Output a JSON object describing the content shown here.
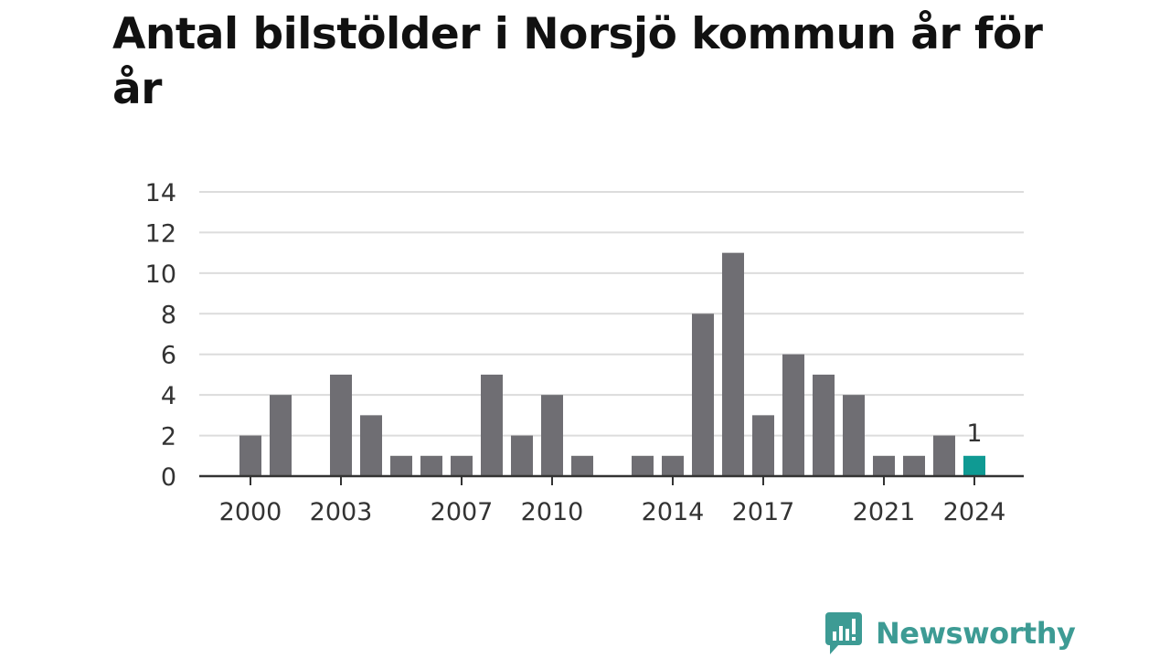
{
  "chart_data": {
    "type": "bar",
    "title": "Antal bilstölder i Norsjö kommun år för år",
    "x": [
      2000,
      2001,
      2002,
      2003,
      2004,
      2005,
      2006,
      2007,
      2008,
      2009,
      2010,
      2011,
      2012,
      2013,
      2014,
      2015,
      2016,
      2017,
      2018,
      2019,
      2020,
      2021,
      2022,
      2023,
      2024
    ],
    "values": [
      2,
      4,
      0,
      5,
      3,
      1,
      1,
      1,
      5,
      2,
      4,
      1,
      0,
      1,
      1,
      8,
      11,
      3,
      6,
      5,
      4,
      1,
      1,
      2,
      1
    ],
    "x_ticks": [
      2000,
      2003,
      2007,
      2010,
      2014,
      2017,
      2021,
      2024
    ],
    "y_ticks": [
      0,
      2,
      4,
      6,
      8,
      10,
      12,
      14
    ],
    "ylim": [
      0,
      14
    ],
    "grid": true,
    "highlight": {
      "x": 2024,
      "label": "1"
    },
    "colors": {
      "bar": "#6f6e73",
      "highlight": "#0f9a93",
      "grid": "#dcdcdc",
      "axis": "#333333",
      "text": "#333333"
    }
  },
  "brand": {
    "name": "Newsworthy",
    "icon": "newsworthy-logo-icon",
    "color": "#3d9b94"
  }
}
